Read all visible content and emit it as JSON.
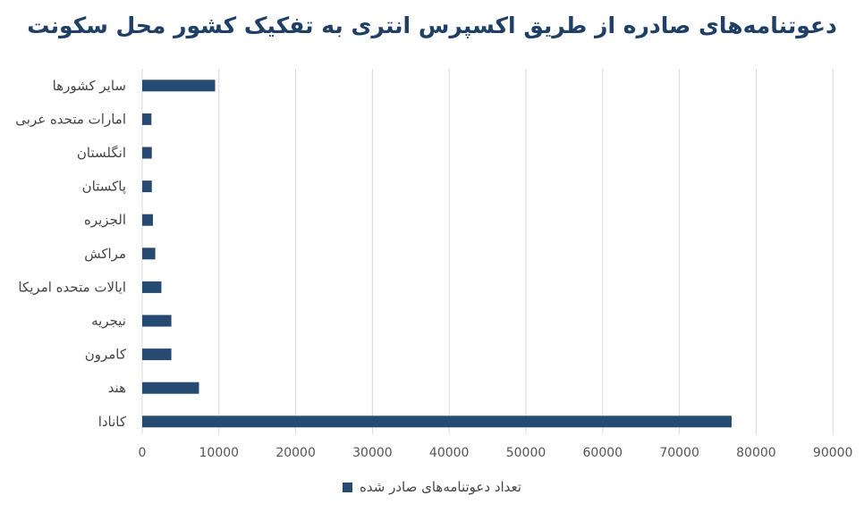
{
  "chart_data": {
    "type": "bar",
    "orientation": "horizontal",
    "title": "دعوتنامه‌های صادره از طریق اکسپرس انتری به تفکیک کشور محل سکونت",
    "categories": [
      "سایر کشورها",
      "امارات متحده عربی",
      "انگلستان",
      "پاکستان",
      "الجزیره",
      "مراکش",
      "ایالات متحده امریکا",
      "نیجریه",
      "کامرون",
      "هند",
      "کانادا"
    ],
    "series": [
      {
        "name": "تعداد دعوتنامه‌های صادر شده",
        "values": [
          9500,
          1200,
          1250,
          1250,
          1400,
          1700,
          2500,
          3800,
          3800,
          7400,
          76800
        ]
      }
    ],
    "xlim": [
      0,
      90000
    ],
    "xticks": [
      "0",
      "10000",
      "20000",
      "30000",
      "40000",
      "50000",
      "60000",
      "70000",
      "80000",
      "90000"
    ],
    "grid": "vertical",
    "legend": "bottom",
    "bar_color": "#264a72",
    "grid_color": "#d9d9d9",
    "title_color": "#1f3f66"
  }
}
